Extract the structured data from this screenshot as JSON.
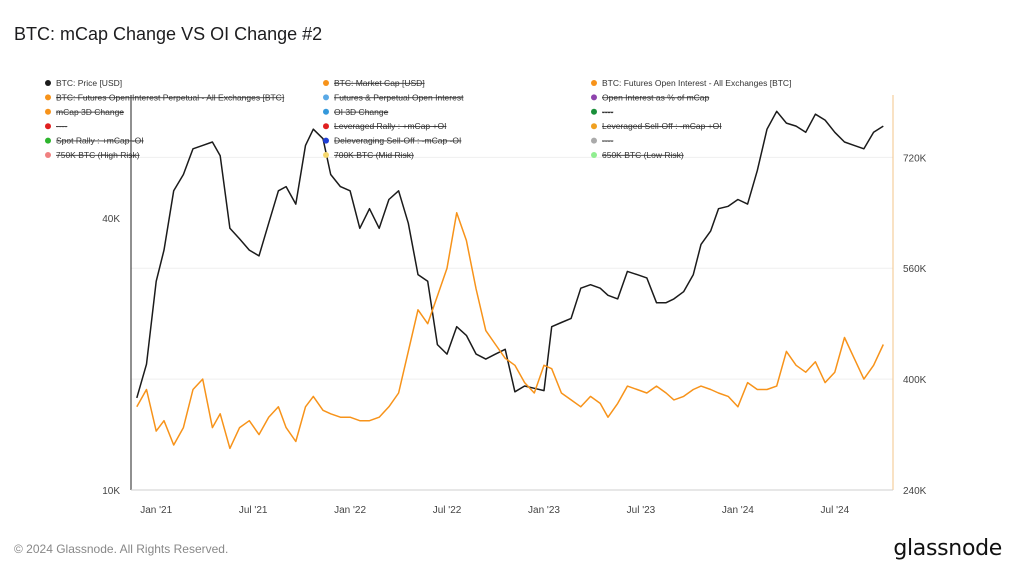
{
  "title": "BTC: mCap Change VS OI Change #2",
  "footer": "© 2024 Glassnode. All Rights Reserved.",
  "brand": "glassnode",
  "chart_data": {
    "type": "line",
    "x_ticks": [
      "Jan '21",
      "Jul '21",
      "Jan '22",
      "Jul '22",
      "Jan '23",
      "Jul '23",
      "Jan '24",
      "Jul '24"
    ],
    "y_left": {
      "scale": "log",
      "ticks": [
        "10K",
        "40K"
      ],
      "range": [
        10000,
        75000
      ]
    },
    "y_right": {
      "ticks": [
        "240K",
        "400K",
        "560K",
        "720K"
      ],
      "range": [
        240000,
        810000
      ]
    },
    "legend": [
      {
        "label": "BTC: Price [USD]",
        "color": "#1b1b1b",
        "active": true
      },
      {
        "label": "BTC: Market Cap [USD]",
        "color": "#f7931a",
        "active": false
      },
      {
        "label": "BTC: Futures Open Interest - All Exchanges [BTC]",
        "color": "#f7931a",
        "active": true
      },
      {
        "label": "BTC: Futures Open Interest Perpetual - All Exchanges [BTC]",
        "color": "#f7931a",
        "active": false
      },
      {
        "label": "Futures & Perpetual Open Interest",
        "color": "#5aa9e6",
        "active": false
      },
      {
        "label": "Open Interest as % of mCap",
        "color": "#8e44ad",
        "active": false
      },
      {
        "label": "mCap 3D Change",
        "color": "#f7931a",
        "active": false
      },
      {
        "label": "OI 3D Change",
        "color": "#3498db",
        "active": false
      },
      {
        "label": "----",
        "color": "#1a8f3a",
        "active": false
      },
      {
        "label": "----",
        "color": "#e02020",
        "active": false
      },
      {
        "label": "Leveraged Rally : +mCap +OI",
        "color": "#e02020",
        "active": false
      },
      {
        "label": "Leveraged Sell-Off : -mCap +OI",
        "color": "#f0a020",
        "active": false
      },
      {
        "label": "Spot Rally : +mCap -OI",
        "color": "#2db52d",
        "active": false
      },
      {
        "label": "Deleveraging Sell-Off : -mCap -OI",
        "color": "#1f3fd6",
        "active": false
      },
      {
        "label": "----",
        "color": "#aaaaaa",
        "active": false
      },
      {
        "label": "750K BTC (High Risk)",
        "color": "#f08080",
        "active": false
      },
      {
        "label": "700K BTC (Mid Risk)",
        "color": "#f5d76e",
        "active": false
      },
      {
        "label": "650K BTC (Low Risk)",
        "color": "#90ee90",
        "active": false
      }
    ],
    "series": [
      {
        "name": "BTC: Price [USD]",
        "axis": "left",
        "color": "#1b1b1b",
        "x": [
          2020.9,
          2020.95,
          2021.0,
          2021.04,
          2021.09,
          2021.14,
          2021.19,
          2021.24,
          2021.29,
          2021.33,
          2021.38,
          2021.43,
          2021.48,
          2021.53,
          2021.58,
          2021.63,
          2021.67,
          2021.72,
          2021.77,
          2021.81,
          2021.86,
          2021.9,
          2021.95,
          2022.0,
          2022.05,
          2022.1,
          2022.15,
          2022.2,
          2022.25,
          2022.3,
          2022.35,
          2022.4,
          2022.45,
          2022.5,
          2022.55,
          2022.6,
          2022.65,
          2022.7,
          2022.75,
          2022.8,
          2022.85,
          2022.9,
          2022.95,
          2023.0,
          2023.04,
          2023.09,
          2023.14,
          2023.19,
          2023.24,
          2023.29,
          2023.33,
          2023.38,
          2023.43,
          2023.48,
          2023.53,
          2023.58,
          2023.63,
          2023.67,
          2023.72,
          2023.77,
          2023.81,
          2023.86,
          2023.9,
          2023.95,
          2024.0,
          2024.05,
          2024.1,
          2024.15,
          2024.2,
          2024.25,
          2024.3,
          2024.35,
          2024.4,
          2024.45,
          2024.5,
          2024.55,
          2024.6,
          2024.65,
          2024.7,
          2024.75
        ],
        "y": [
          16000,
          19000,
          29000,
          34000,
          46000,
          50000,
          57000,
          58000,
          59000,
          55000,
          38000,
          36000,
          34000,
          33000,
          39000,
          46000,
          47000,
          43000,
          58000,
          63000,
          60000,
          50000,
          47000,
          46000,
          38000,
          42000,
          38000,
          44000,
          46000,
          39000,
          30000,
          29000,
          21000,
          20000,
          23000,
          22000,
          20000,
          19500,
          20000,
          20500,
          16500,
          17000,
          16800,
          16600,
          23000,
          23500,
          24000,
          28000,
          28500,
          28000,
          27000,
          26500,
          30500,
          30000,
          29500,
          26000,
          26000,
          26500,
          27500,
          30000,
          35000,
          37500,
          42000,
          42500,
          44000,
          43000,
          51000,
          63000,
          69000,
          65000,
          64000,
          62000,
          68000,
          66000,
          62000,
          59000,
          58000,
          57000,
          62000,
          64000
        ]
      },
      {
        "name": "BTC: Futures Open Interest - All Exchanges [BTC]",
        "axis": "right",
        "color": "#f7931a",
        "x": [
          2020.9,
          2020.95,
          2021.0,
          2021.04,
          2021.09,
          2021.14,
          2021.19,
          2021.24,
          2021.29,
          2021.33,
          2021.38,
          2021.43,
          2021.48,
          2021.53,
          2021.58,
          2021.63,
          2021.67,
          2021.72,
          2021.77,
          2021.81,
          2021.86,
          2021.9,
          2021.95,
          2022.0,
          2022.05,
          2022.1,
          2022.15,
          2022.2,
          2022.25,
          2022.3,
          2022.35,
          2022.4,
          2022.45,
          2022.5,
          2022.55,
          2022.6,
          2022.65,
          2022.7,
          2022.75,
          2022.8,
          2022.85,
          2022.9,
          2022.95,
          2023.0,
          2023.04,
          2023.09,
          2023.14,
          2023.19,
          2023.24,
          2023.29,
          2023.33,
          2023.38,
          2023.43,
          2023.48,
          2023.53,
          2023.58,
          2023.63,
          2023.67,
          2023.72,
          2023.77,
          2023.81,
          2023.86,
          2023.9,
          2023.95,
          2024.0,
          2024.05,
          2024.1,
          2024.15,
          2024.2,
          2024.25,
          2024.3,
          2024.35,
          2024.4,
          2024.45,
          2024.5,
          2024.55,
          2024.6,
          2024.65,
          2024.7,
          2024.75
        ],
        "y": [
          360000,
          385000,
          325000,
          340000,
          305000,
          330000,
          385000,
          400000,
          330000,
          350000,
          300000,
          330000,
          340000,
          320000,
          345000,
          360000,
          330000,
          310000,
          360000,
          375000,
          355000,
          350000,
          345000,
          345000,
          340000,
          340000,
          345000,
          360000,
          380000,
          440000,
          500000,
          480000,
          520000,
          560000,
          640000,
          600000,
          530000,
          470000,
          450000,
          430000,
          420000,
          395000,
          380000,
          420000,
          415000,
          380000,
          370000,
          360000,
          375000,
          365000,
          345000,
          365000,
          390000,
          385000,
          380000,
          390000,
          380000,
          370000,
          375000,
          385000,
          390000,
          385000,
          380000,
          375000,
          360000,
          395000,
          385000,
          385000,
          390000,
          440000,
          420000,
          410000,
          425000,
          395000,
          410000,
          460000,
          430000,
          400000,
          420000,
          450000
        ]
      }
    ]
  }
}
